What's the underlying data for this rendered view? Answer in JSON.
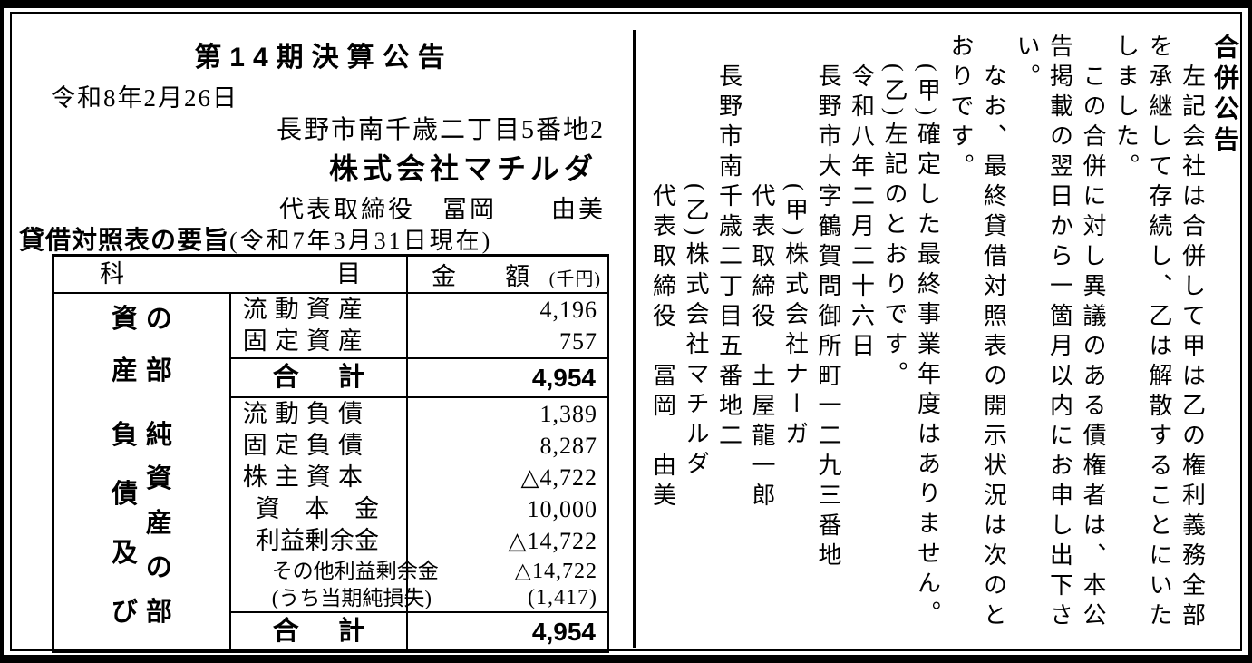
{
  "page": {
    "background": "#ffffff",
    "ink": "#000000"
  },
  "left_block": {
    "title": "第14期決算公告",
    "date_line": "令和8年2月26日",
    "address_line": "長野市南千歳二丁目5番地2",
    "company_name": "株式会社マチルダ",
    "representative_line": "代表取締役　冨岡　　由美",
    "bs_heading": "貸借対照表の要旨",
    "bs_heading_note": "(令和7年3月31日現在)",
    "table": {
      "col_subject_header": "科目",
      "col_amount_header": "金額",
      "col_amount_unit": "(千円)",
      "total_label": "合計",
      "sections": [
        {
          "section_label_columns": [
            "資産",
            "の部"
          ],
          "section_label_text": "資産の部",
          "rows": [
            {
              "item": "流動資産",
              "value": "4,196",
              "indent": 0,
              "small": false
            },
            {
              "item": "固定資産",
              "value": "757",
              "indent": 0,
              "small": false
            }
          ],
          "total_value": "4,954"
        },
        {
          "section_label_columns": [
            "負債及び",
            "純資産の部"
          ],
          "section_label_text": "負債及び純資産の部",
          "rows": [
            {
              "item": "流動負債",
              "value": "1,389",
              "indent": 0,
              "small": false
            },
            {
              "item": "固定負債",
              "value": "8,287",
              "indent": 0,
              "small": false
            },
            {
              "item": "株主資本",
              "value": "△4,722",
              "indent": 0,
              "small": false
            },
            {
              "item": "資本金",
              "value": "10,000",
              "indent": 1,
              "small": false
            },
            {
              "item": "利益剰余金",
              "value": "△14,722",
              "indent": 1,
              "small": false
            },
            {
              "item": "その他利益剰余金",
              "value": "△14,722",
              "indent": 2,
              "small": true
            },
            {
              "item": "(うち当期純損失)",
              "value": "(1,417)",
              "indent": 2,
              "small": true
            }
          ],
          "total_value": "4,954"
        }
      ]
    }
  },
  "right_block": {
    "heading": "合併公告",
    "lines": [
      "　左記会社は合併して甲は乙の権利義務全部",
      "を承継して存続し、乙は解散することにいた",
      "しました。",
      "　この合併に対し異議のある債権者は、本公",
      "告掲載の翌日から一箇月以内にお申し出下さ",
      "い。",
      "　なお、最終貸借対照表の開示状況は次のと",
      "おりです。",
      "　(甲)確定した最終事業年度はありません。",
      "　(乙)左記のとおりです。",
      "　令和八年二月二十六日",
      "　長野市大字鶴賀問御所町一二九三番地",
      "　　　　　(甲)株式会社ナーガ",
      "　　　　　代表取締役　土屋龍一郎",
      "　長野市南千歳二丁目五番地二",
      "　　　　　(乙)株式会社マチルダ",
      "　　　　　代表取締役　冨岡　由美"
    ]
  }
}
